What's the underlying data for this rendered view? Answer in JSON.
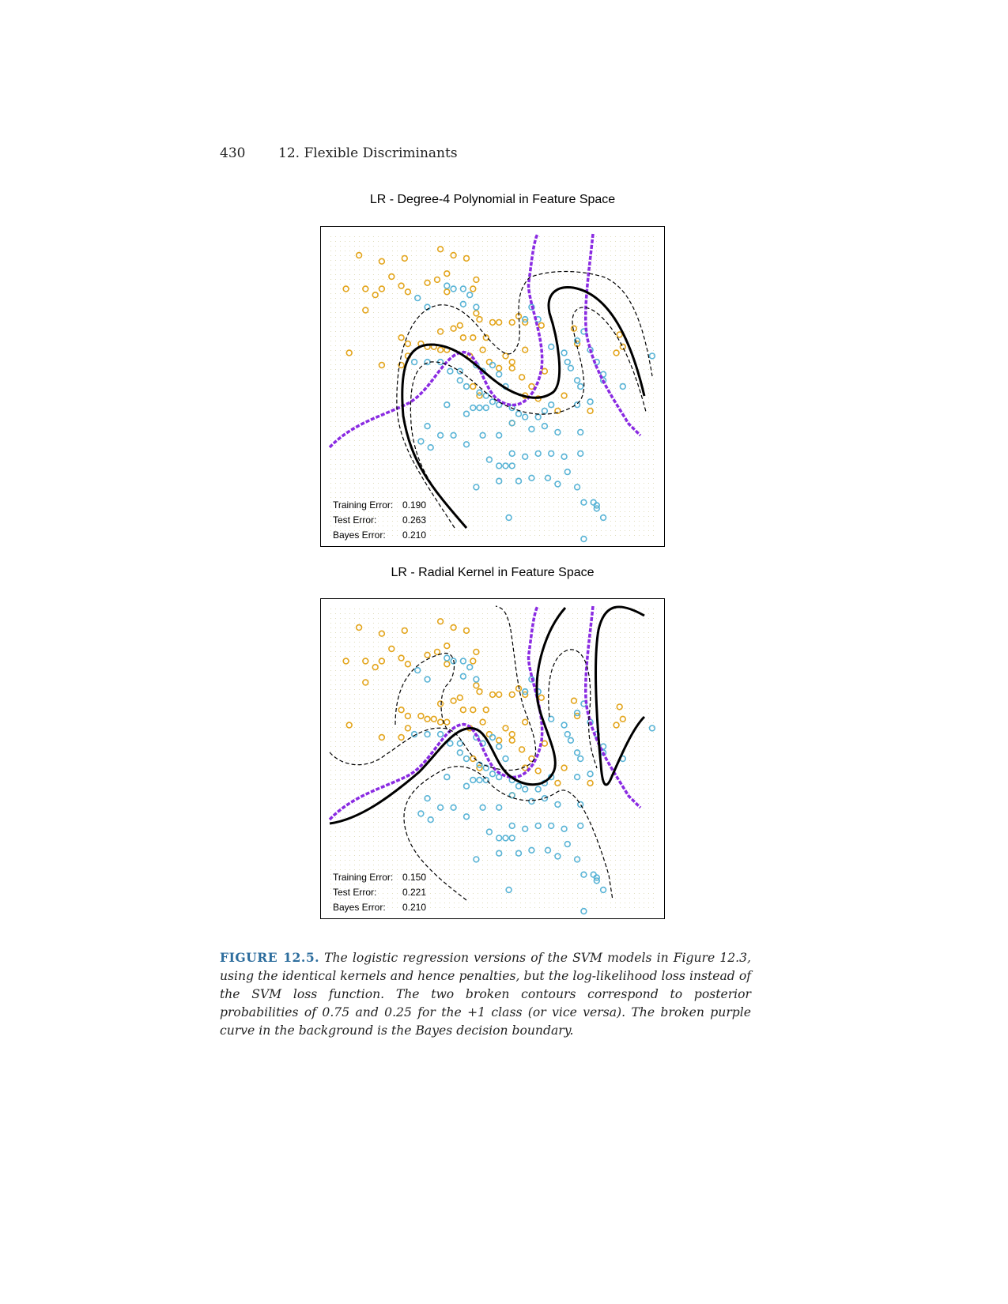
{
  "page": {
    "number": "430",
    "chapter": "12.  Flexible Discriminants"
  },
  "figures": [
    {
      "title": "LR - Degree-4 Polynomial in Feature Space",
      "stats": [
        {
          "label": "Training Error:",
          "value": "0.190"
        },
        {
          "label": "Test Error:",
          "value": "0.263"
        },
        {
          "label": "Bayes Error:",
          "value": "0.210"
        }
      ]
    },
    {
      "title": "LR - Radial Kernel in Feature Space",
      "stats": [
        {
          "label": "Training Error:",
          "value": "0.150"
        },
        {
          "label": "Test Error:",
          "value": "0.221"
        },
        {
          "label": "Bayes Error:",
          "value": "0.210"
        }
      ]
    }
  ],
  "caption": {
    "label": "FIGURE 12.5.",
    "text": "The logistic regression versions of the SVM models in Figure 12.3, using the identical kernels and hence penalties, but the log-likelihood loss instead of the SVM loss function. The two broken contours correspond to posterior probabilities of 0.75 and 0.25 for the +1 class (or vice versa). The broken purple curve in the background is the Bayes decision boundary."
  },
  "colors": {
    "orange_class": "#e3a51c",
    "blue_class": "#5ab4d6",
    "bayes_boundary": "#8a2be2",
    "decision_boundary": "#000000",
    "caption_label": "#2e6e9e"
  },
  "chart_data": [
    {
      "type": "scatter",
      "title": "LR - Degree-4 Polynomial in Feature Space",
      "series": [
        {
          "name": "",
          "color": "orange",
          "points": [
            [
              0.09,
              0.93
            ],
            [
              0.16,
              0.91
            ],
            [
              0.23,
              0.92
            ],
            [
              0.34,
              0.95
            ],
            [
              0.38,
              0.93
            ],
            [
              0.42,
              0.92
            ],
            [
              0.19,
              0.86
            ],
            [
              0.3,
              0.84
            ],
            [
              0.05,
              0.82
            ],
            [
              0.11,
              0.82
            ],
            [
              0.14,
              0.8
            ],
            [
              0.16,
              0.82
            ],
            [
              0.22,
              0.83
            ],
            [
              0.24,
              0.81
            ],
            [
              0.33,
              0.85
            ],
            [
              0.36,
              0.87
            ],
            [
              0.45,
              0.85
            ],
            [
              0.36,
              0.81
            ],
            [
              0.44,
              0.82
            ],
            [
              0.11,
              0.75
            ],
            [
              0.45,
              0.74
            ],
            [
              0.46,
              0.72
            ],
            [
              0.5,
              0.71
            ],
            [
              0.52,
              0.71
            ],
            [
              0.56,
              0.71
            ],
            [
              0.58,
              0.73
            ],
            [
              0.6,
              0.71
            ],
            [
              0.38,
              0.69
            ],
            [
              0.4,
              0.7
            ],
            [
              0.34,
              0.68
            ],
            [
              0.41,
              0.66
            ],
            [
              0.44,
              0.66
            ],
            [
              0.48,
              0.66
            ],
            [
              0.22,
              0.66
            ],
            [
              0.24,
              0.64
            ],
            [
              0.28,
              0.64
            ],
            [
              0.3,
              0.63
            ],
            [
              0.32,
              0.63
            ],
            [
              0.34,
              0.62
            ],
            [
              0.36,
              0.62
            ],
            [
              0.06,
              0.61
            ],
            [
              0.24,
              0.6
            ],
            [
              0.16,
              0.57
            ],
            [
              0.22,
              0.57
            ],
            [
              0.43,
              0.6
            ],
            [
              0.47,
              0.62
            ],
            [
              0.49,
              0.58
            ],
            [
              0.52,
              0.56
            ],
            [
              0.54,
              0.6
            ],
            [
              0.56,
              0.58
            ],
            [
              0.6,
              0.62
            ],
            [
              0.56,
              0.56
            ],
            [
              0.59,
              0.53
            ],
            [
              0.62,
              0.5
            ],
            [
              0.6,
              0.47
            ],
            [
              0.64,
              0.46
            ],
            [
              0.7,
              0.42
            ],
            [
              0.72,
              0.47
            ],
            [
              0.75,
              0.69
            ],
            [
              0.76,
              0.64
            ],
            [
              0.89,
              0.67
            ],
            [
              0.9,
              0.63
            ],
            [
              0.88,
              0.61
            ],
            [
              0.44,
              0.5
            ],
            [
              0.46,
              0.47
            ],
            [
              0.66,
              0.55
            ],
            [
              0.56,
              0.38
            ],
            [
              0.8,
              0.42
            ],
            [
              0.65,
              0.7
            ]
          ]
        },
        {
          "name": "",
          "color": "blue",
          "points": [
            [
              0.36,
              0.83
            ],
            [
              0.38,
              0.82
            ],
            [
              0.41,
              0.82
            ],
            [
              0.43,
              0.8
            ],
            [
              0.41,
              0.77
            ],
            [
              0.45,
              0.76
            ],
            [
              0.27,
              0.79
            ],
            [
              0.3,
              0.76
            ],
            [
              0.6,
              0.72
            ],
            [
              0.62,
              0.76
            ],
            [
              0.64,
              0.72
            ],
            [
              0.68,
              0.63
            ],
            [
              0.72,
              0.61
            ],
            [
              0.73,
              0.58
            ],
            [
              0.74,
              0.56
            ],
            [
              0.76,
              0.52
            ],
            [
              0.77,
              0.5
            ],
            [
              0.76,
              0.65
            ],
            [
              0.78,
              0.68
            ],
            [
              0.8,
              0.62
            ],
            [
              0.82,
              0.58
            ],
            [
              0.84,
              0.54
            ],
            [
              0.9,
              0.5
            ],
            [
              0.99,
              0.6
            ],
            [
              0.76,
              0.44
            ],
            [
              0.8,
              0.45
            ],
            [
              0.84,
              0.52
            ],
            [
              0.26,
              0.58
            ],
            [
              0.3,
              0.58
            ],
            [
              0.34,
              0.58
            ],
            [
              0.37,
              0.55
            ],
            [
              0.4,
              0.55
            ],
            [
              0.45,
              0.57
            ],
            [
              0.47,
              0.55
            ],
            [
              0.5,
              0.57
            ],
            [
              0.52,
              0.54
            ],
            [
              0.54,
              0.5
            ],
            [
              0.4,
              0.52
            ],
            [
              0.42,
              0.5
            ],
            [
              0.46,
              0.48
            ],
            [
              0.48,
              0.47
            ],
            [
              0.5,
              0.45
            ],
            [
              0.52,
              0.44
            ],
            [
              0.56,
              0.43
            ],
            [
              0.58,
              0.41
            ],
            [
              0.6,
              0.4
            ],
            [
              0.64,
              0.4
            ],
            [
              0.66,
              0.42
            ],
            [
              0.68,
              0.44
            ],
            [
              0.36,
              0.44
            ],
            [
              0.42,
              0.41
            ],
            [
              0.44,
              0.43
            ],
            [
              0.46,
              0.43
            ],
            [
              0.48,
              0.43
            ],
            [
              0.3,
              0.37
            ],
            [
              0.34,
              0.34
            ],
            [
              0.38,
              0.34
            ],
            [
              0.42,
              0.31
            ],
            [
              0.47,
              0.34
            ],
            [
              0.52,
              0.34
            ],
            [
              0.56,
              0.38
            ],
            [
              0.62,
              0.36
            ],
            [
              0.66,
              0.37
            ],
            [
              0.7,
              0.35
            ],
            [
              0.77,
              0.35
            ],
            [
              0.31,
              0.3
            ],
            [
              0.28,
              0.32
            ],
            [
              0.49,
              0.26
            ],
            [
              0.52,
              0.24
            ],
            [
              0.54,
              0.24
            ],
            [
              0.56,
              0.24
            ],
            [
              0.6,
              0.27
            ],
            [
              0.64,
              0.28
            ],
            [
              0.68,
              0.28
            ],
            [
              0.72,
              0.27
            ],
            [
              0.77,
              0.28
            ],
            [
              0.73,
              0.22
            ],
            [
              0.76,
              0.17
            ],
            [
              0.78,
              0.12
            ],
            [
              0.52,
              0.19
            ],
            [
              0.58,
              0.19
            ],
            [
              0.62,
              0.2
            ],
            [
              0.67,
              0.2
            ],
            [
              0.7,
              0.18
            ],
            [
              0.56,
              0.28
            ],
            [
              0.81,
              0.12
            ],
            [
              0.82,
              0.11
            ],
            [
              0.82,
              0.1
            ],
            [
              0.84,
              0.07
            ],
            [
              0.45,
              0.17
            ],
            [
              0.55,
              0.07
            ],
            [
              0.78,
              0.0
            ]
          ]
        }
      ],
      "legend": "none"
    },
    {
      "type": "scatter",
      "title": "LR - Radial Kernel in Feature Space",
      "series": [
        {
          "name": "",
          "color": "orange",
          "points": "same as panel 1"
        },
        {
          "name": "",
          "color": "blue",
          "points": "same as panel 1"
        }
      ],
      "legend": "none"
    }
  ]
}
